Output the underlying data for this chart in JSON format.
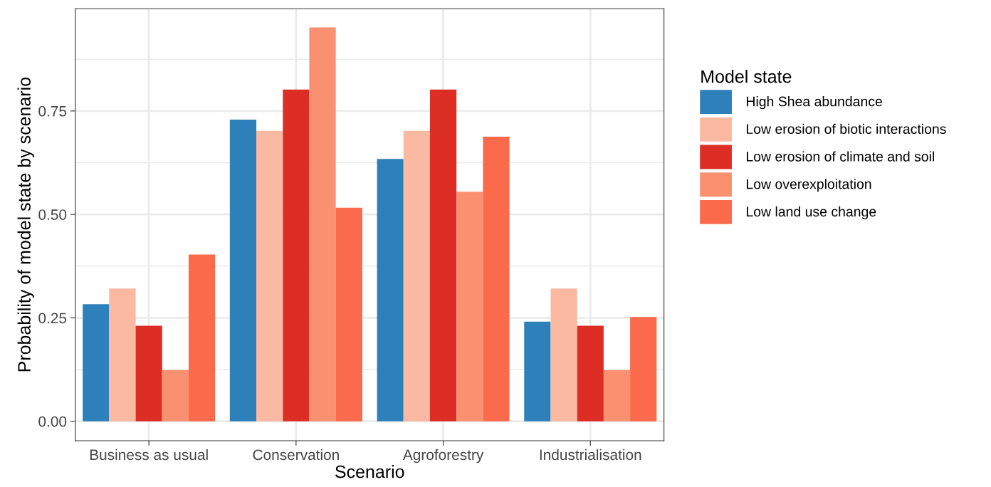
{
  "chart_data": {
    "type": "bar",
    "xlabel": "Scenario",
    "ylabel": "Probability of model state by scenario",
    "legend_title": "Model state",
    "categories": [
      "Business as usual",
      "Conservation",
      "Agroforestry",
      "Industrialisation"
    ],
    "series": [
      {
        "name": "High Shea abundance",
        "color": "#2e80bb",
        "values": [
          0.283,
          0.729,
          0.634,
          0.241
        ]
      },
      {
        "name": "Low erosion of biotic interactions",
        "color": "#fbb9a1",
        "values": [
          0.321,
          0.702,
          0.702,
          0.321
        ]
      },
      {
        "name": "Low erosion of climate and soil",
        "color": "#dd2e26",
        "values": [
          0.231,
          0.802,
          0.802,
          0.231
        ]
      },
      {
        "name": "Low overexploitation",
        "color": "#f99171",
        "values": [
          0.124,
          0.952,
          0.555,
          0.124
        ]
      },
      {
        "name": "Low land use change",
        "color": "#fb6a4a",
        "values": [
          0.403,
          0.516,
          0.688,
          0.252
        ]
      }
    ],
    "ylim": [
      -0.047,
      0.997
    ],
    "yticks": [
      {
        "value": 0,
        "label": "0.00"
      },
      {
        "value": 0.25,
        "label": "0.25"
      },
      {
        "value": 0.5,
        "label": "0.50"
      },
      {
        "value": 0.75,
        "label": "0.75"
      }
    ],
    "grid": true,
    "legend": "right"
  }
}
